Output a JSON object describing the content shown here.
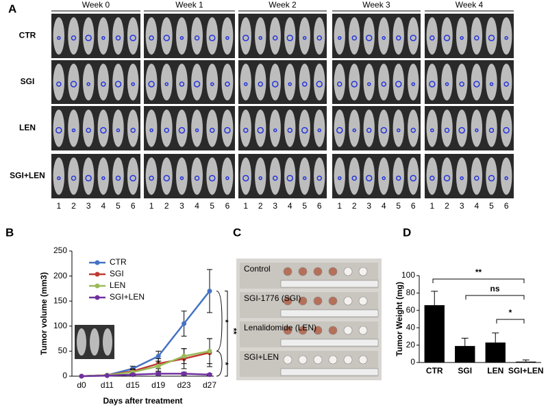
{
  "panel_a": {
    "label": "A",
    "weeks": [
      "Week 0",
      "Week 1",
      "Week 2",
      "Week 3",
      "Week 4"
    ],
    "groups": [
      "CTR",
      "SGI",
      "LEN",
      "SGI+LEN"
    ],
    "mouse_numbers": [
      "1",
      "2",
      "3",
      "4",
      "5",
      "6"
    ]
  },
  "panel_c": {
    "label": "C",
    "rows": [
      "Control",
      "SGI-1776 (SGI)",
      "Lenalidomide (LEN)",
      "SGI+LEN"
    ]
  },
  "chart_data": [
    {
      "type": "line",
      "panel": "B",
      "ylabel": "Tumor volume (mm3)",
      "xlabel": "Days after treatment",
      "categories": [
        "d0",
        "d11",
        "d15",
        "d19",
        "d23",
        "d27"
      ],
      "series": [
        {
          "name": "CTR",
          "color": "#4472c4",
          "values": [
            0,
            2,
            15,
            40,
            105,
            170
          ],
          "errors": [
            0,
            1,
            5,
            10,
            25,
            43
          ]
        },
        {
          "name": "SGI",
          "color": "#be3a34",
          "values": [
            0,
            2,
            10,
            25,
            35,
            47
          ],
          "errors": [
            0,
            1,
            5,
            10,
            20,
            28
          ]
        },
        {
          "name": "LEN",
          "color": "#9bbb59",
          "values": [
            0,
            2,
            8,
            20,
            40,
            50
          ],
          "errors": [
            0,
            1,
            5,
            10,
            15,
            25
          ]
        },
        {
          "name": "SGI+LEN",
          "color": "#7030a0",
          "values": [
            0,
            1,
            3,
            5,
            5,
            3
          ],
          "errors": [
            0,
            1,
            2,
            3,
            3,
            2
          ]
        }
      ],
      "ylim": [
        0,
        250
      ],
      "yticks": [
        0,
        50,
        100,
        150,
        200,
        250
      ],
      "legend": "upper-left",
      "annotations": [
        "*",
        "**",
        "*"
      ]
    },
    {
      "type": "bar",
      "panel": "D",
      "ylabel": "Tumor Weight (mg)",
      "categories": [
        "CTR",
        "SGI",
        "LEN",
        "SGI+LEN"
      ],
      "values": [
        66,
        19,
        23,
        1
      ],
      "errors": [
        16,
        9,
        11,
        2
      ],
      "color": "#000000",
      "ylim": [
        0,
        100
      ],
      "yticks": [
        0,
        20,
        40,
        60,
        80,
        100
      ],
      "annotations": [
        "**",
        "ns",
        "*"
      ]
    }
  ]
}
